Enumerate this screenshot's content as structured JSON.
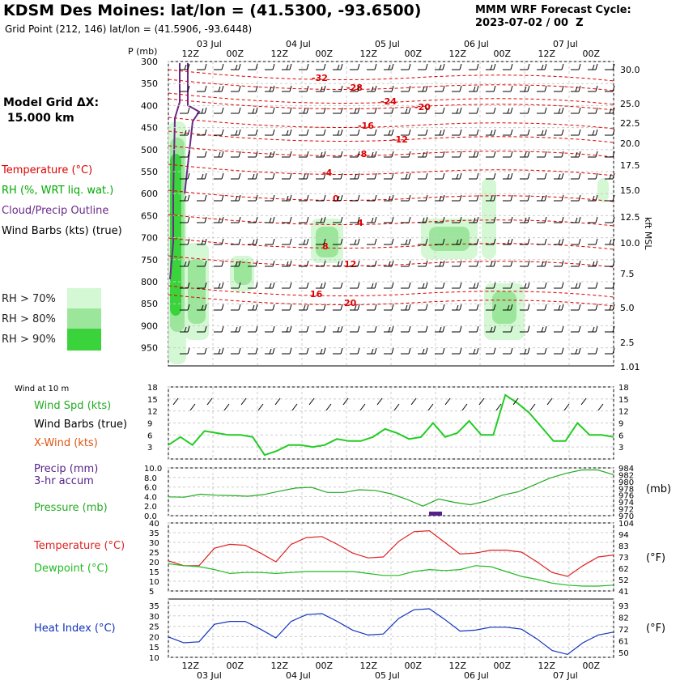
{
  "header": {
    "title": "KDSM Des Moines:  lat/lon = (41.5300, -93.6500)",
    "subtitle": "Grid Point (212, 146) lat/lon = (41.5906, -93.6448)",
    "cycle_line1": "MMM WRF Forecast Cycle:",
    "cycle_line2": "2023-07-02 / 00  Z",
    "model_grid_line1": "Model Grid ΔX:",
    "model_grid_line2": " 15.000 km"
  },
  "legend": {
    "temperature": "Temperature (°C)",
    "rh": "RH (%, WRT liq. wat.)",
    "cloud": "Cloud/Precip Outline",
    "barbs": "Wind Barbs (kts) (true)",
    "rh70": "RH > 70%",
    "rh80": "RH > 80%",
    "rh90": "RH > 90%",
    "wind10": "Wind at 10 m",
    "windspd": "Wind Spd (kts)",
    "windbarbs": "Wind Barbs (true)",
    "xwind": "X-Wind (kts)",
    "precip": "Precip (mm)",
    "precip2": "3-hr accum",
    "pressure": "Pressure (mb)",
    "temp2": "Temperature (°C)",
    "dewpoint": "Dewpoint (°C)",
    "heatindex": "Heat Index (°C)",
    "p_axis_label": "P (mb)",
    "kft_label": "kft MSL",
    "mb_unit": "(mb)",
    "f_unit": "(°F)",
    "f_unit2": "(°F)"
  },
  "colors": {
    "temperature": "#dd0000",
    "rh_label": "#00aa00",
    "cloud": "#6a2a8a",
    "rh70": "#d4f7d4",
    "rh80": "#9be69b",
    "rh90": "#3bd33b",
    "windspd": "#22cc22",
    "pressure": "#22aa22",
    "temp_line": "#dd2222",
    "dew_line": "#22bb22",
    "heat_line": "#1133bb",
    "precip": "#552288",
    "xwind": "#dd5511"
  },
  "chart_data": {
    "type": "line",
    "time_axis": {
      "hours": [
        0,
        6,
        12,
        18,
        24,
        30,
        36,
        42,
        48,
        54,
        60,
        66,
        72,
        78,
        84,
        90,
        96,
        102,
        108,
        114,
        120
      ],
      "top_labels": [
        "12Z",
        "00Z",
        "12Z",
        "00Z",
        "12Z",
        "00Z",
        "12Z",
        "00Z",
        "12Z",
        "00Z"
      ],
      "date_labels": [
        "03 Jul",
        "04 Jul",
        "05 Jul",
        "06 Jul",
        "07 Jul"
      ]
    },
    "sounding": {
      "pressure_ticks": [
        "300",
        "350",
        "400",
        "450",
        "500",
        "550",
        "600",
        "650",
        "700",
        "750",
        "800",
        "850",
        "900",
        "950"
      ],
      "height_ticks": [
        "30.0",
        "25.0",
        "22.5",
        "20.0",
        "17.5",
        "15.0",
        "12.5",
        "10.0",
        "7.5",
        "5.0",
        "2.5",
        "1.01"
      ],
      "temperature_contour_labels": [
        "-32",
        "-28",
        "-24",
        "-20",
        "-16",
        "-12",
        "-8",
        "-4",
        "0",
        "4",
        "8",
        "12",
        "16",
        "20"
      ]
    },
    "wind_panel": {
      "ylim": [
        0,
        18
      ],
      "yticks": [
        "18",
        "15",
        "12",
        "9",
        "6",
        "3"
      ],
      "wind_speed_kts": [
        3.5,
        5.5,
        3.5,
        7.0,
        6.5,
        6.0,
        6.0,
        5.5,
        1.0,
        2.0,
        3.5,
        3.5,
        3.0,
        3.5,
        5.0,
        4.5,
        4.5,
        5.5,
        7.5,
        6.5,
        5.0,
        5.5,
        9.0,
        5.5,
        6.5,
        9.5,
        6.0,
        6.0,
        16.0,
        14.0,
        11.5,
        8.0,
        4.5,
        4.5,
        9.0,
        6.0,
        6.0,
        5.5
      ]
    },
    "precip_pressure_panel": {
      "precip_ylim": [
        0,
        10
      ],
      "precip_ticks": [
        "10.0",
        "8.0",
        "6.0",
        "4.0",
        "2.0",
        "0.0"
      ],
      "pressure_ticks": [
        "984",
        "982",
        "980",
        "978",
        "976",
        "974",
        "972",
        "970"
      ],
      "precip_mm": [
        {
          "hour": 72,
          "value": 0.8
        }
      ],
      "pressure_mb": [
        975.5,
        975.4,
        976.3,
        976.0,
        975.9,
        975.7,
        976.2,
        977.2,
        978.1,
        978.3,
        976.8,
        976.8,
        977.6,
        977.4,
        976.4,
        974.8,
        972.8,
        974.9,
        973.9,
        973.2,
        974.3,
        976.0,
        977.0,
        979.0,
        981.0,
        982.4,
        983.4,
        983.4,
        982.0
      ]
    },
    "temp_panel": {
      "ylim": [
        5,
        40
      ],
      "yticks_c": [
        "40",
        "35",
        "30",
        "25",
        "20",
        "15",
        "10",
        "5"
      ],
      "yticks_f": [
        "104",
        "94",
        "83",
        "73",
        "62",
        "52",
        "41"
      ],
      "temperature_c": [
        20.5,
        18.0,
        18.0,
        27.0,
        29.0,
        28.5,
        24.5,
        20.0,
        29.0,
        32.5,
        33.0,
        29.0,
        24.5,
        22.0,
        22.5,
        30.5,
        35.5,
        36.0,
        30.0,
        24.0,
        24.5,
        26.0,
        26.0,
        25.0,
        20.0,
        14.5,
        12.5,
        18.0,
        22.5,
        23.5
      ],
      "dewpoint_c": [
        19.0,
        18.0,
        17.5,
        16.0,
        14.0,
        14.5,
        14.5,
        14.0,
        14.5,
        15.0,
        15.0,
        15.0,
        15.0,
        14.0,
        13.0,
        13.0,
        15.0,
        16.0,
        15.5,
        16.0,
        18.0,
        17.5,
        15.0,
        12.5,
        11.0,
        9.0,
        8.0,
        7.5,
        7.5,
        8.0
      ]
    },
    "heat_panel": {
      "ylim": [
        10,
        40
      ],
      "yticks_c": [
        "35",
        "30",
        "25",
        "20",
        "15",
        "10"
      ],
      "yticks_f": [
        "93",
        "82",
        "72",
        "61",
        "50"
      ],
      "heat_index_c": [
        20.5,
        17.5,
        18.0,
        27.0,
        28.5,
        28.5,
        24.5,
        20.0,
        28.5,
        32.0,
        32.5,
        28.5,
        24.0,
        21.5,
        22.0,
        30.0,
        34.5,
        35.0,
        29.5,
        23.5,
        24.0,
        25.5,
        25.5,
        24.5,
        19.5,
        13.5,
        11.5,
        17.5,
        21.5,
        23.0
      ]
    }
  }
}
